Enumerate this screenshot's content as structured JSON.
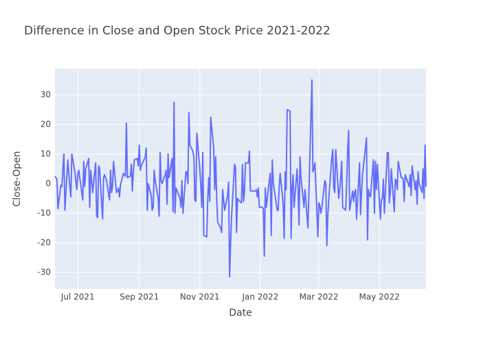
{
  "chart_data": {
    "type": "line",
    "title": "Difference in Close and Open Stock Price 2021-2022",
    "x_label": "Date",
    "y_label": "Close-Open",
    "color": "#636efa",
    "grid": true,
    "x": [
      "2021-06-08",
      "2021-06-09",
      "2021-06-10",
      "2021-06-11",
      "2021-06-14",
      "2021-06-15",
      "2021-06-16",
      "2021-06-17",
      "2021-06-18",
      "2021-06-21",
      "2021-06-22",
      "2021-06-23",
      "2021-06-24",
      "2021-06-25",
      "2021-06-28",
      "2021-06-29",
      "2021-06-30",
      "2021-07-01",
      "2021-07-02",
      "2021-07-06",
      "2021-07-07",
      "2021-07-08",
      "2021-07-09",
      "2021-07-12",
      "2021-07-13",
      "2021-07-14",
      "2021-07-15",
      "2021-07-16",
      "2021-07-19",
      "2021-07-20",
      "2021-07-21",
      "2021-07-22",
      "2021-07-23",
      "2021-07-26",
      "2021-07-27",
      "2021-07-28",
      "2021-07-29",
      "2021-07-30",
      "2021-08-02",
      "2021-08-03",
      "2021-08-04",
      "2021-08-05",
      "2021-08-06",
      "2021-08-09",
      "2021-08-10",
      "2021-08-11",
      "2021-08-12",
      "2021-08-13",
      "2021-08-16",
      "2021-08-17",
      "2021-08-18",
      "2021-08-19",
      "2021-08-20",
      "2021-08-23",
      "2021-08-24",
      "2021-08-25",
      "2021-08-26",
      "2021-08-27",
      "2021-08-30",
      "2021-08-31",
      "2021-09-01",
      "2021-09-02",
      "2021-09-03",
      "2021-09-07",
      "2021-09-08",
      "2021-09-09",
      "2021-09-10",
      "2021-09-13",
      "2021-09-14",
      "2021-09-15",
      "2021-09-16",
      "2021-09-17",
      "2021-09-20",
      "2021-09-21",
      "2021-09-22",
      "2021-09-23",
      "2021-09-24",
      "2021-09-27",
      "2021-09-28",
      "2021-09-29",
      "2021-09-30",
      "2021-10-01",
      "2021-10-04",
      "2021-10-05",
      "2021-10-06",
      "2021-10-07",
      "2021-10-08",
      "2021-10-11",
      "2021-10-12",
      "2021-10-13",
      "2021-10-14",
      "2021-10-15",
      "2021-10-18",
      "2021-10-19",
      "2021-10-20",
      "2021-10-21",
      "2021-10-22",
      "2021-10-25",
      "2021-10-26",
      "2021-10-27",
      "2021-10-28",
      "2021-10-29",
      "2021-11-01",
      "2021-11-02",
      "2021-11-03",
      "2021-11-04",
      "2021-11-05",
      "2021-11-08",
      "2021-11-09",
      "2021-11-10",
      "2021-11-11",
      "2021-11-12",
      "2021-11-15",
      "2021-11-16",
      "2021-11-17",
      "2021-11-18",
      "2021-11-19",
      "2021-11-22",
      "2021-11-23",
      "2021-11-24",
      "2021-11-26",
      "2021-11-29",
      "2021-11-30",
      "2021-12-01",
      "2021-12-02",
      "2021-12-03",
      "2021-12-06",
      "2021-12-07",
      "2021-12-08",
      "2021-12-09",
      "2021-12-10",
      "2021-12-13",
      "2021-12-14",
      "2021-12-15",
      "2021-12-16",
      "2021-12-17",
      "2021-12-20",
      "2021-12-21",
      "2021-12-22",
      "2021-12-23",
      "2021-12-27",
      "2021-12-28",
      "2021-12-29",
      "2021-12-30",
      "2021-12-31",
      "2022-01-03",
      "2022-01-04",
      "2022-01-05",
      "2022-01-06",
      "2022-01-07",
      "2022-01-10",
      "2022-01-11",
      "2022-01-12",
      "2022-01-13",
      "2022-01-14",
      "2022-01-18",
      "2022-01-19",
      "2022-01-20",
      "2022-01-21",
      "2022-01-24",
      "2022-01-25",
      "2022-01-26",
      "2022-01-27",
      "2022-01-28",
      "2022-01-31",
      "2022-02-01",
      "2022-02-02",
      "2022-02-03",
      "2022-02-04",
      "2022-02-07",
      "2022-02-08",
      "2022-02-09",
      "2022-02-10",
      "2022-02-11",
      "2022-02-14",
      "2022-02-15",
      "2022-02-16",
      "2022-02-17",
      "2022-02-18",
      "2022-02-22",
      "2022-02-23",
      "2022-02-24",
      "2022-02-25",
      "2022-02-28",
      "2022-03-01",
      "2022-03-02",
      "2022-03-03",
      "2022-03-04",
      "2022-03-07",
      "2022-03-08",
      "2022-03-09",
      "2022-03-10",
      "2022-03-11",
      "2022-03-14",
      "2022-03-15",
      "2022-03-16",
      "2022-03-17",
      "2022-03-18",
      "2022-03-21",
      "2022-03-22",
      "2022-03-23",
      "2022-03-24",
      "2022-03-25",
      "2022-03-28",
      "2022-03-29",
      "2022-03-30",
      "2022-03-31",
      "2022-04-01",
      "2022-04-04",
      "2022-04-05",
      "2022-04-06",
      "2022-04-07",
      "2022-04-08",
      "2022-04-11",
      "2022-04-12",
      "2022-04-13",
      "2022-04-14",
      "2022-04-18",
      "2022-04-19",
      "2022-04-20",
      "2022-04-21",
      "2022-04-22",
      "2022-04-25",
      "2022-04-26",
      "2022-04-27",
      "2022-04-28",
      "2022-04-29",
      "2022-05-02",
      "2022-05-03",
      "2022-05-04",
      "2022-05-05",
      "2022-05-06",
      "2022-05-09",
      "2022-05-10",
      "2022-05-11",
      "2022-05-12",
      "2022-05-13",
      "2022-05-16",
      "2022-05-17",
      "2022-05-18",
      "2022-05-19",
      "2022-05-20",
      "2022-05-23",
      "2022-05-24",
      "2022-05-25",
      "2022-05-26",
      "2022-05-27",
      "2022-05-31",
      "2022-06-01",
      "2022-06-02",
      "2022-06-03",
      "2022-06-06",
      "2022-06-07",
      "2022-06-08",
      "2022-06-09",
      "2022-06-10",
      "2022-06-13",
      "2022-06-14",
      "2022-06-15",
      "2022-06-16",
      "2022-06-17"
    ],
    "values": [
      2.5,
      2,
      1.5,
      -8.5,
      -0.5,
      -1,
      5,
      10,
      -9,
      8,
      3,
      -1,
      -4.5,
      10,
      4,
      1,
      -2,
      3,
      4.5,
      -5.5,
      7.5,
      -1,
      5,
      8.5,
      -8,
      4.5,
      1,
      -3,
      7,
      -11,
      -11.5,
      6,
      5,
      -12,
      2,
      3,
      2,
      1,
      -5.5,
      4.5,
      -3,
      -1,
      7.5,
      -3,
      -2.5,
      -1.5,
      -4.5,
      -0.5,
      3.5,
      3,
      2.5,
      20.5,
      2,
      2.5,
      6.5,
      -2.5,
      4,
      8,
      8.5,
      6,
      13,
      4.5,
      6,
      9,
      12,
      -9,
      0,
      -4,
      -9,
      -8,
      4.5,
      1,
      -5,
      -11,
      10.5,
      1,
      0,
      3,
      4.5,
      -7,
      10,
      2,
      8.5,
      -9.5,
      27.5,
      -10,
      -1.5,
      -4,
      -5,
      -8,
      1,
      -10,
      4,
      4,
      0,
      24,
      13,
      11,
      9,
      -5.5,
      -6,
      17,
      5,
      -1,
      -8,
      10.5,
      -17.5,
      -18,
      -5,
      2,
      -6,
      22.5,
      12,
      -2,
      9,
      -5,
      -13,
      -15,
      -16.5,
      -2,
      -9,
      -4,
      0.5,
      -31.5,
      -20.5,
      -11,
      6.5,
      5.5,
      -16.5,
      -5,
      -5.5,
      -6.5,
      6.5,
      -6,
      -3,
      7,
      7,
      11,
      -2.5,
      -2.5,
      -2.5,
      -2,
      -4.5,
      -1.5,
      -8,
      -8,
      -8.5,
      -24.5,
      -1.5,
      -8,
      1,
      3.5,
      -17.5,
      8,
      0.5,
      -9,
      -9,
      -1,
      3.5,
      -7,
      -18.5,
      4,
      -2,
      25,
      24.5,
      -18.5,
      -1.5,
      3,
      -8,
      5,
      -2,
      -14,
      9,
      2,
      -8,
      -2,
      -6,
      -11,
      -15,
      35,
      4,
      5,
      7,
      -18,
      -6.5,
      -7.5,
      -10,
      -8,
      1,
      0,
      -21,
      -11,
      -5,
      8.5,
      11.5,
      -1.5,
      -3,
      11.5,
      -5,
      -2,
      2,
      7.5,
      -8,
      -9,
      0,
      11,
      18,
      -9,
      -2.5,
      -6,
      -3,
      -2,
      -12,
      7,
      -10.5,
      -3,
      3,
      15.5,
      -19,
      -2,
      -4,
      -4.5,
      8,
      -10,
      7.5,
      -2,
      6.5,
      -12,
      -5.5,
      -5,
      1.5,
      -10,
      10.5,
      10.5,
      -6.5,
      -3,
      5,
      -9.5,
      1.5,
      1,
      -2,
      7.5,
      2,
      2,
      1.5,
      -6,
      3,
      -1,
      3,
      -4,
      6,
      -2,
      1,
      -7,
      4,
      0,
      -3,
      5,
      -5,
      13,
      -1
    ],
    "xlim": [
      "2021-06-08",
      "2022-06-17"
    ],
    "xticks": [
      {
        "value": "2021-07-01",
        "label": "Jul 2021"
      },
      {
        "value": "2021-09-01",
        "label": "Sep 2021"
      },
      {
        "value": "2021-11-01",
        "label": "Nov 2021"
      },
      {
        "value": "2022-01-01",
        "label": "Jan 2022"
      },
      {
        "value": "2022-03-01",
        "label": "Mar 2022"
      },
      {
        "value": "2022-05-01",
        "label": "May 2022"
      }
    ],
    "ylim": [
      -35.6,
      38.8
    ],
    "yticks": [
      -30,
      -20,
      -10,
      0,
      10,
      20,
      30
    ]
  }
}
